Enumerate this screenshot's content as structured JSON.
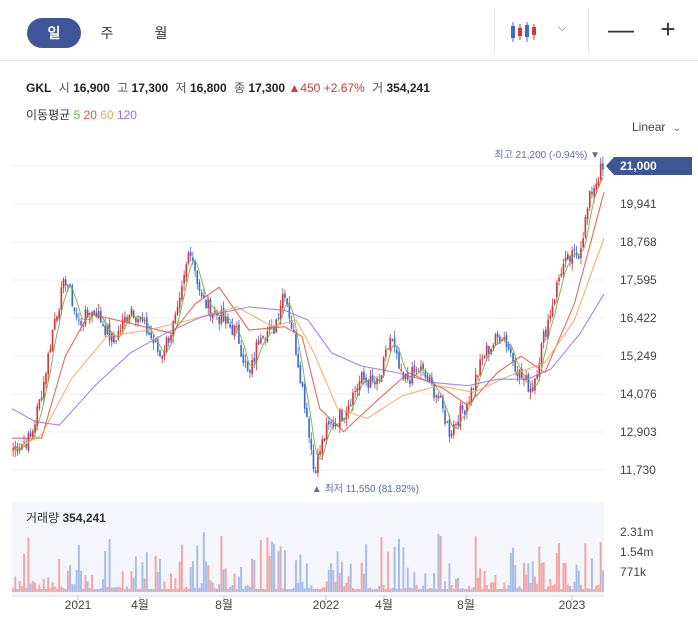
{
  "tabs": [
    "일",
    "주",
    "월"
  ],
  "zoom": {
    "minus": "—",
    "plus": "+"
  },
  "ticker": {
    "name": "GKL",
    "open_label": "시",
    "open": "16,900",
    "high_label": "고",
    "high": "17,300",
    "low_label": "저",
    "low": "16,800",
    "close_label": "종",
    "close": "17,300",
    "change": "450",
    "change_pct": "+2.67%",
    "volume_label": "거",
    "volume": "354,241"
  },
  "ma": {
    "label": "이동평균",
    "periods": [
      "5",
      "20",
      "60",
      "120"
    ],
    "colors": [
      "#6fb24a",
      "#e0513f",
      "#f3a55a",
      "#9a6ce0"
    ]
  },
  "scale": {
    "mode": "Linear"
  },
  "colors": {
    "up": "#d6363b",
    "down": "#3f6bd0",
    "accent": "#3f5597",
    "volume_up": "#f2a6a6",
    "volume_down": "#a9bde9"
  },
  "chart_data": {
    "type": "candlestick",
    "price_axis": {
      "ticks": [
        "21,000",
        "19,941",
        "18,768",
        "17,595",
        "16,422",
        "15,249",
        "14,076",
        "12,903",
        "11,730"
      ],
      "range": [
        11730,
        21000
      ]
    },
    "current_price_label": "21,000",
    "high_annotation": {
      "label": "최고",
      "value": "21,200 (-0.94%)"
    },
    "low_annotation": {
      "label": "최저",
      "value": "11,550 (81.82%)"
    },
    "x_ticks": [
      "2021",
      "4월",
      "8월",
      "2022",
      "4월",
      "8월",
      "2023"
    ],
    "price_path": [
      {
        "t": 0.0,
        "p": 12400
      },
      {
        "t": 0.03,
        "p": 12700
      },
      {
        "t": 0.05,
        "p": 14200
      },
      {
        "t": 0.07,
        "p": 16300
      },
      {
        "t": 0.09,
        "p": 17600
      },
      {
        "t": 0.11,
        "p": 16200
      },
      {
        "t": 0.14,
        "p": 16600
      },
      {
        "t": 0.17,
        "p": 15600
      },
      {
        "t": 0.2,
        "p": 16700
      },
      {
        "t": 0.23,
        "p": 15900
      },
      {
        "t": 0.25,
        "p": 15200
      },
      {
        "t": 0.28,
        "p": 16500
      },
      {
        "t": 0.3,
        "p": 18600
      },
      {
        "t": 0.32,
        "p": 16900
      },
      {
        "t": 0.35,
        "p": 16400
      },
      {
        "t": 0.38,
        "p": 15900
      },
      {
        "t": 0.4,
        "p": 14500
      },
      {
        "t": 0.42,
        "p": 16000
      },
      {
        "t": 0.44,
        "p": 15900
      },
      {
        "t": 0.46,
        "p": 17300
      },
      {
        "t": 0.48,
        "p": 15400
      },
      {
        "t": 0.5,
        "p": 13200
      },
      {
        "t": 0.51,
        "p": 11700
      },
      {
        "t": 0.53,
        "p": 12900
      },
      {
        "t": 0.56,
        "p": 13500
      },
      {
        "t": 0.59,
        "p": 14500
      },
      {
        "t": 0.62,
        "p": 14300
      },
      {
        "t": 0.64,
        "p": 15800
      },
      {
        "t": 0.66,
        "p": 14400
      },
      {
        "t": 0.69,
        "p": 14800
      },
      {
        "t": 0.72,
        "p": 14000
      },
      {
        "t": 0.74,
        "p": 12900
      },
      {
        "t": 0.77,
        "p": 13800
      },
      {
        "t": 0.8,
        "p": 15300
      },
      {
        "t": 0.83,
        "p": 15900
      },
      {
        "t": 0.86,
        "p": 14600
      },
      {
        "t": 0.88,
        "p": 14200
      },
      {
        "t": 0.9,
        "p": 15800
      },
      {
        "t": 0.93,
        "p": 17900
      },
      {
        "t": 0.96,
        "p": 18400
      },
      {
        "t": 0.98,
        "p": 20200
      },
      {
        "t": 1.0,
        "p": 21000
      }
    ],
    "ma_paths": [
      {
        "name": "20",
        "points": [
          [
            0.0,
            12700
          ],
          [
            0.05,
            12700
          ],
          [
            0.09,
            15200
          ],
          [
            0.13,
            16500
          ],
          [
            0.2,
            16200
          ],
          [
            0.27,
            15900
          ],
          [
            0.31,
            16800
          ],
          [
            0.35,
            17300
          ],
          [
            0.4,
            16000
          ],
          [
            0.46,
            16100
          ],
          [
            0.49,
            15800
          ],
          [
            0.52,
            13600
          ],
          [
            0.56,
            12900
          ],
          [
            0.62,
            13900
          ],
          [
            0.67,
            14700
          ],
          [
            0.73,
            14200
          ],
          [
            0.77,
            13700
          ],
          [
            0.82,
            14700
          ],
          [
            0.86,
            15200
          ],
          [
            0.9,
            14700
          ],
          [
            0.95,
            16800
          ],
          [
            1.0,
            20200
          ]
        ]
      },
      {
        "name": "60",
        "points": [
          [
            0.0,
            12300
          ],
          [
            0.05,
            12800
          ],
          [
            0.1,
            14500
          ],
          [
            0.16,
            15800
          ],
          [
            0.23,
            16000
          ],
          [
            0.3,
            16300
          ],
          [
            0.38,
            16700
          ],
          [
            0.44,
            16100
          ],
          [
            0.48,
            16300
          ],
          [
            0.51,
            15300
          ],
          [
            0.55,
            13600
          ],
          [
            0.6,
            13300
          ],
          [
            0.66,
            14000
          ],
          [
            0.72,
            14300
          ],
          [
            0.78,
            14100
          ],
          [
            0.84,
            14600
          ],
          [
            0.9,
            15000
          ],
          [
            0.95,
            16300
          ],
          [
            1.0,
            18800
          ]
        ]
      },
      {
        "name": "120",
        "points": [
          [
            0.0,
            13600
          ],
          [
            0.04,
            13200
          ],
          [
            0.08,
            13100
          ],
          [
            0.14,
            14300
          ],
          [
            0.2,
            15300
          ],
          [
            0.26,
            15900
          ],
          [
            0.32,
            16400
          ],
          [
            0.4,
            16700
          ],
          [
            0.46,
            16600
          ],
          [
            0.5,
            16300
          ],
          [
            0.54,
            15300
          ],
          [
            0.59,
            14900
          ],
          [
            0.65,
            14700
          ],
          [
            0.71,
            14400
          ],
          [
            0.77,
            14300
          ],
          [
            0.82,
            14500
          ],
          [
            0.87,
            14500
          ],
          [
            0.91,
            14800
          ],
          [
            0.96,
            15900
          ],
          [
            1.0,
            17100
          ]
        ]
      }
    ],
    "volume": {
      "label": "거래량",
      "value": "354,241",
      "axis_ticks": [
        "2.31m",
        "1.54m",
        "771k"
      ]
    }
  }
}
